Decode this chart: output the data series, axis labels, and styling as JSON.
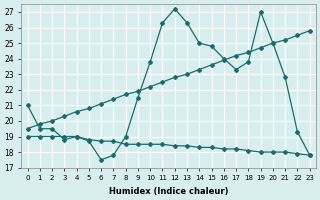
{
  "xlabel": "Humidex (Indice chaleur)",
  "x": [
    0,
    1,
    2,
    3,
    4,
    5,
    6,
    7,
    8,
    9,
    10,
    11,
    12,
    13,
    14,
    15,
    16,
    17,
    18,
    19,
    20,
    21,
    22,
    23
  ],
  "line_main": [
    21,
    19.5,
    19.5,
    18.8,
    19.0,
    18.7,
    17.5,
    17.8,
    19.0,
    21.5,
    23.8,
    26.3,
    27.2,
    26.3,
    25.0,
    24.8,
    24.0,
    23.3,
    23.8,
    27.0,
    25.0,
    22.8,
    19.3,
    17.8
  ],
  "line_trend": [
    19.5,
    19.8,
    20.0,
    20.3,
    20.6,
    20.8,
    21.1,
    21.4,
    21.7,
    21.9,
    22.2,
    22.5,
    22.8,
    23.0,
    23.3,
    23.6,
    23.9,
    24.2,
    24.4,
    24.7,
    25.0,
    25.2,
    25.5,
    25.8
  ],
  "line_flat": [
    19.0,
    19.0,
    19.0,
    19.0,
    19.0,
    18.8,
    18.7,
    18.7,
    18.5,
    18.5,
    18.5,
    18.5,
    18.4,
    18.4,
    18.3,
    18.3,
    18.2,
    18.2,
    18.1,
    18.0,
    18.0,
    18.0,
    17.9,
    17.8
  ],
  "line_color": "#1a6b6b",
  "bg_color": "#d8eeee",
  "grid_color": "#ffffff",
  "ylim": [
    17,
    27.5
  ],
  "yticks": [
    17,
    18,
    19,
    20,
    21,
    22,
    23,
    24,
    25,
    26,
    27
  ],
  "xticks": [
    0,
    1,
    2,
    3,
    4,
    5,
    6,
    7,
    8,
    9,
    10,
    11,
    12,
    13,
    14,
    15,
    16,
    17,
    18,
    19,
    20,
    21,
    22,
    23
  ]
}
